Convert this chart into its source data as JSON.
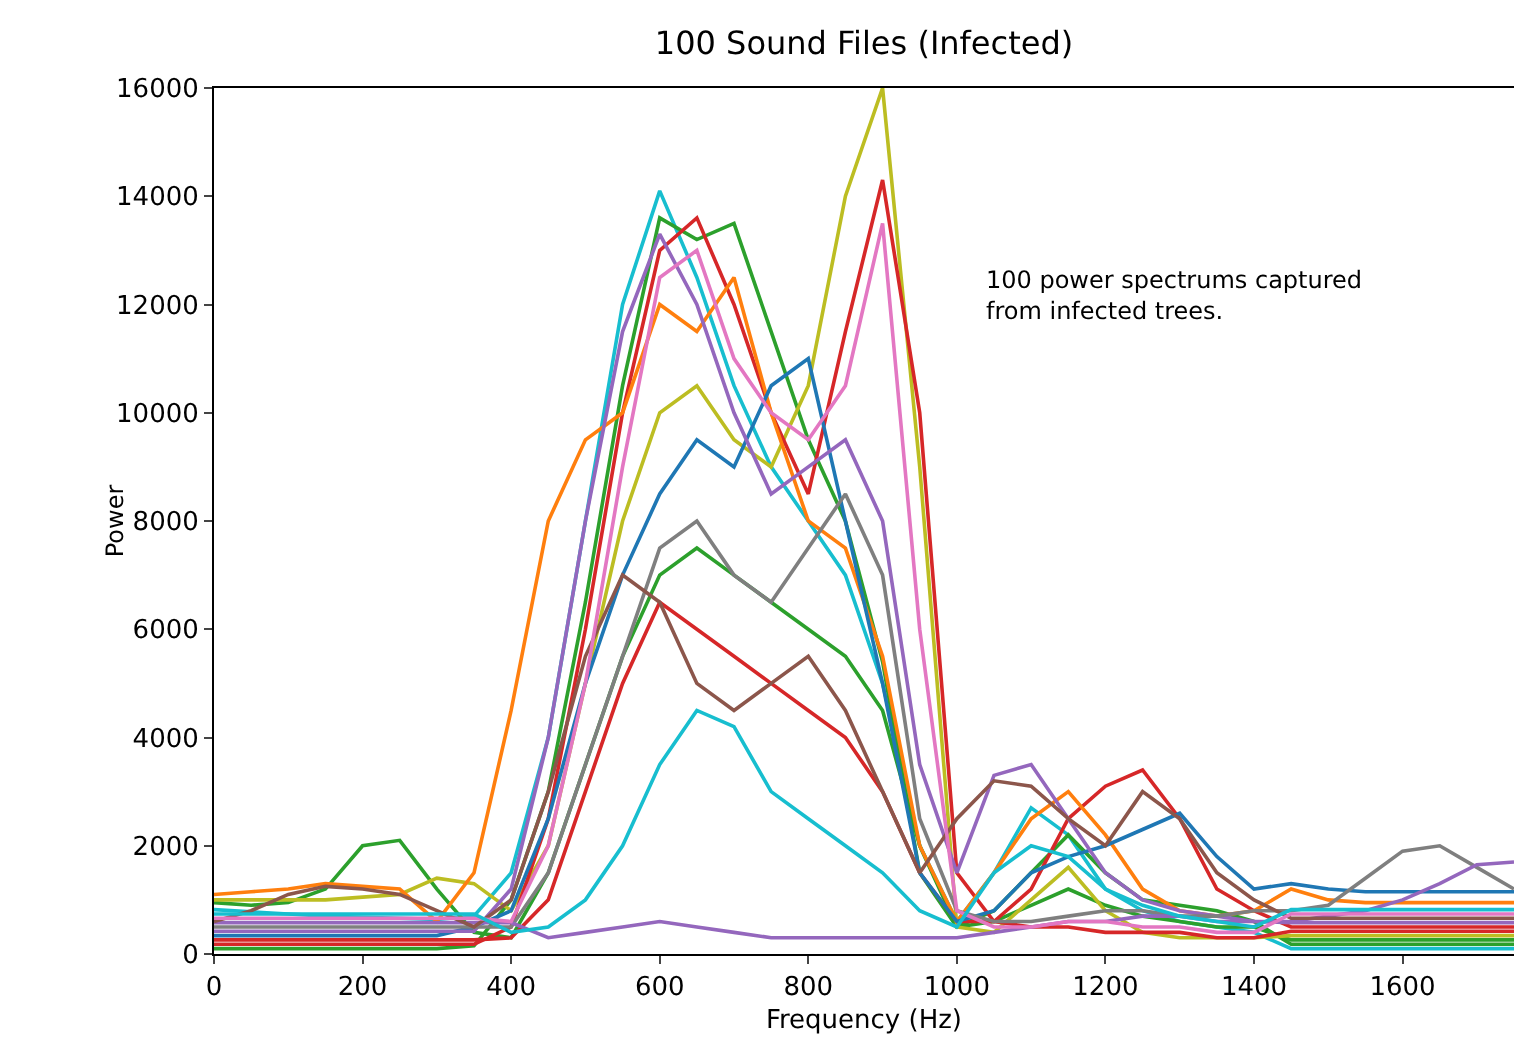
{
  "chart_data": {
    "type": "line",
    "title": "100 Sound Files (Infected)",
    "xlabel": "Frequency (Hz)",
    "ylabel": "Power",
    "annotations": [
      "100 power spectrums captured from infected trees."
    ],
    "x": [
      0,
      50,
      100,
      150,
      200,
      250,
      300,
      350,
      400,
      450,
      500,
      550,
      600,
      650,
      700,
      750,
      800,
      850,
      900,
      950,
      1000,
      1050,
      1100,
      1150,
      1200,
      1250,
      1300,
      1350,
      1400,
      1450,
      1500,
      1550,
      1600,
      1650,
      1700,
      1750
    ],
    "xlim": [
      0,
      1750
    ],
    "xticks": [
      0,
      200,
      400,
      600,
      800,
      1000,
      1200,
      1400,
      1600
    ],
    "ylim": [
      0,
      16000
    ],
    "yticks": [
      0,
      2000,
      4000,
      6000,
      8000,
      10000,
      12000,
      14000,
      16000
    ],
    "grid": false,
    "marker": "none",
    "line_style": "solid",
    "series": [
      {
        "color": "#17becf",
        "values": [
          820,
          780,
          740,
          700,
          680,
          660,
          640,
          700,
          1500,
          4000,
          8000,
          12000,
          14100,
          12500,
          10500,
          9000,
          8000,
          7000,
          5000,
          2000,
          600,
          1500,
          2700,
          2200,
          1200,
          800,
          600,
          500,
          400,
          100,
          100,
          100,
          100,
          100,
          100,
          100
        ]
      },
      {
        "color": "#2ca02c",
        "values": [
          100,
          100,
          100,
          100,
          100,
          100,
          100,
          150,
          1000,
          3000,
          6500,
          10500,
          13600,
          13200,
          13500,
          11500,
          9500,
          8000,
          5400,
          1500,
          500,
          800,
          1500,
          2200,
          1500,
          1000,
          900,
          800,
          600,
          180,
          180,
          180,
          180,
          180,
          180,
          180
        ]
      },
      {
        "color": "#2ca02c",
        "values": [
          950,
          900,
          950,
          1200,
          2000,
          2100,
          1200,
          400,
          300,
          1500,
          3500,
          5500,
          7000,
          7500,
          7000,
          6500,
          6000,
          5500,
          4500,
          2000,
          500,
          600,
          900,
          1200,
          900,
          700,
          600,
          500,
          500,
          260,
          260,
          260,
          260,
          260,
          260,
          260
        ]
      },
      {
        "color": "#bcbd22",
        "values": [
          1000,
          1000,
          1000,
          1000,
          1050,
          1100,
          1400,
          1300,
          800,
          2000,
          5000,
          8000,
          10000,
          10500,
          9500,
          9000,
          10500,
          14000,
          16000,
          9000,
          500,
          400,
          1000,
          1600,
          800,
          400,
          300,
          300,
          300,
          340,
          340,
          340,
          340,
          340,
          340,
          340
        ]
      },
      {
        "color": "#d62728",
        "values": [
          180,
          180,
          180,
          180,
          180,
          180,
          180,
          180,
          500,
          2500,
          6000,
          10000,
          13000,
          13600,
          12000,
          10000,
          8500,
          11500,
          14300,
          10000,
          1500,
          600,
          500,
          500,
          400,
          400,
          400,
          300,
          300,
          420,
          420,
          420,
          420,
          420,
          420,
          420
        ]
      },
      {
        "color": "#d62728",
        "values": [
          260,
          260,
          260,
          260,
          260,
          260,
          260,
          260,
          300,
          1000,
          3000,
          5000,
          6500,
          6000,
          5500,
          5000,
          4500,
          4000,
          3000,
          1500,
          600,
          600,
          1200,
          2500,
          3100,
          3400,
          2500,
          1200,
          800,
          500,
          500,
          500,
          500,
          500,
          500,
          500
        ]
      },
      {
        "color": "#ff7f0e",
        "values": [
          1100,
          1150,
          1200,
          1300,
          1250,
          1200,
          600,
          1500,
          4500,
          8000,
          9500,
          10000,
          12000,
          11500,
          12500,
          10000,
          8000,
          7500,
          5500,
          2000,
          600,
          1500,
          2500,
          3000,
          2200,
          1200,
          800,
          700,
          800,
          1200,
          1000,
          950,
          950,
          950,
          950,
          950
        ]
      },
      {
        "color": "#1f77b4",
        "values": [
          340,
          340,
          340,
          340,
          340,
          340,
          340,
          500,
          800,
          2500,
          5000,
          7000,
          8500,
          9500,
          9000,
          10500,
          11000,
          8000,
          5000,
          1500,
          600,
          800,
          1500,
          1800,
          2000,
          2300,
          2600,
          1800,
          1200,
          1300,
          1200,
          1150,
          1150,
          1150,
          1150,
          1150
        ]
      },
      {
        "color": "#9467bd",
        "values": [
          420,
          420,
          420,
          420,
          420,
          420,
          420,
          420,
          1200,
          4000,
          8000,
          11500,
          13300,
          12000,
          10000,
          8500,
          9000,
          9500,
          8000,
          3500,
          1500,
          3300,
          3500,
          2500,
          1500,
          1000,
          800,
          700,
          600,
          580,
          580,
          580,
          580,
          580,
          580,
          580
        ]
      },
      {
        "color": "#7f7f7f",
        "values": [
          500,
          500,
          500,
          500,
          500,
          500,
          500,
          500,
          500,
          1500,
          3500,
          5500,
          7500,
          8000,
          7000,
          6500,
          7500,
          8500,
          7000,
          2500,
          800,
          600,
          600,
          700,
          800,
          800,
          700,
          700,
          800,
          800,
          900,
          1400,
          1900,
          2000,
          1600,
          1200
        ]
      },
      {
        "color": "#9467bd",
        "values": [
          580,
          580,
          580,
          580,
          580,
          580,
          580,
          580,
          580,
          300,
          400,
          500,
          600,
          500,
          400,
          300,
          300,
          300,
          300,
          300,
          300,
          400,
          500,
          600,
          600,
          700,
          700,
          600,
          600,
          600,
          700,
          800,
          1000,
          1300,
          1650,
          1700
        ]
      },
      {
        "color": "#8c564b",
        "values": [
          600,
          800,
          1100,
          1250,
          1200,
          1100,
          800,
          500,
          1000,
          3000,
          5500,
          7000,
          6500,
          5000,
          4500,
          5000,
          5500,
          4500,
          3000,
          1500,
          2500,
          3200,
          3100,
          2500,
          2000,
          3000,
          2500,
          1500,
          1000,
          660,
          660,
          660,
          660,
          660,
          660,
          660
        ]
      },
      {
        "color": "#e377c2",
        "values": [
          660,
          660,
          660,
          660,
          660,
          660,
          660,
          660,
          600,
          2000,
          5000,
          9000,
          12500,
          13000,
          11000,
          10000,
          9500,
          10500,
          13500,
          6000,
          800,
          500,
          500,
          600,
          600,
          500,
          500,
          400,
          400,
          740,
          740,
          740,
          740,
          740,
          740,
          740
        ]
      },
      {
        "color": "#17becf",
        "values": [
          740,
          740,
          740,
          740,
          740,
          740,
          740,
          740,
          400,
          500,
          1000,
          2000,
          3500,
          4500,
          4200,
          3000,
          2500,
          2000,
          1500,
          800,
          500,
          1500,
          2000,
          1800,
          1200,
          900,
          700,
          600,
          500,
          820,
          820,
          820,
          820,
          820,
          820,
          820
        ]
      }
    ]
  }
}
